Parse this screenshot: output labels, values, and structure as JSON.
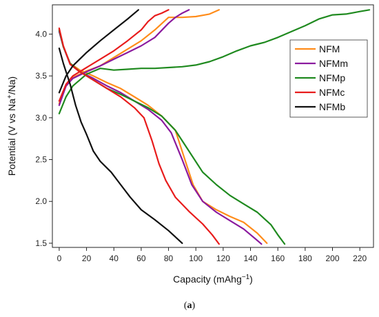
{
  "chart_data": {
    "type": "line",
    "title": "",
    "xlabel": "Capacity (mAhg",
    "xlabel_sup": "−1",
    "xlabel_end": ")",
    "ylabel_parts": [
      "Potential (V vs Na",
      "+",
      "/Na)"
    ],
    "xlim": [
      -5,
      230
    ],
    "ylim": [
      1.45,
      4.35
    ],
    "x_ticks": [
      0,
      20,
      40,
      60,
      80,
      100,
      120,
      140,
      160,
      180,
      200,
      220
    ],
    "y_ticks": [
      1.5,
      2.0,
      2.5,
      3.0,
      3.5,
      4.0
    ],
    "y_tick_labels": [
      "1.5",
      "2.0",
      "2.5",
      "3.0",
      "3.5",
      "4.0"
    ],
    "legend_position": "top-right",
    "grid": false,
    "caption_open": "(",
    "caption_letter": "a",
    "caption_close": ")",
    "series": [
      {
        "name": "NFM",
        "color": "#ff8c1a",
        "charge": [
          [
            0,
            3.17
          ],
          [
            5,
            3.38
          ],
          [
            10,
            3.48
          ],
          [
            20,
            3.56
          ],
          [
            30,
            3.62
          ],
          [
            40,
            3.72
          ],
          [
            50,
            3.82
          ],
          [
            60,
            3.92
          ],
          [
            70,
            4.05
          ],
          [
            80,
            4.2
          ],
          [
            90,
            4.2
          ],
          [
            100,
            4.21
          ],
          [
            110,
            4.24
          ],
          [
            117,
            4.29
          ]
        ],
        "discharge": [
          [
            0,
            4.05
          ],
          [
            3,
            3.85
          ],
          [
            8,
            3.65
          ],
          [
            15,
            3.57
          ],
          [
            25,
            3.5
          ],
          [
            35,
            3.42
          ],
          [
            45,
            3.35
          ],
          [
            55,
            3.25
          ],
          [
            65,
            3.15
          ],
          [
            75,
            3.02
          ],
          [
            85,
            2.85
          ],
          [
            92,
            2.5
          ],
          [
            98,
            2.2
          ],
          [
            105,
            2.0
          ],
          [
            115,
            1.9
          ],
          [
            125,
            1.82
          ],
          [
            135,
            1.75
          ],
          [
            145,
            1.62
          ],
          [
            152,
            1.5
          ]
        ]
      },
      {
        "name": "NFMm",
        "color": "#8b1a9e",
        "charge": [
          [
            0,
            3.15
          ],
          [
            5,
            3.38
          ],
          [
            10,
            3.47
          ],
          [
            20,
            3.55
          ],
          [
            30,
            3.62
          ],
          [
            40,
            3.7
          ],
          [
            50,
            3.78
          ],
          [
            60,
            3.86
          ],
          [
            70,
            3.96
          ],
          [
            80,
            4.13
          ],
          [
            85,
            4.2
          ],
          [
            90,
            4.25
          ],
          [
            95,
            4.29
          ]
        ],
        "discharge": [
          [
            0,
            4.03
          ],
          [
            3,
            3.85
          ],
          [
            8,
            3.64
          ],
          [
            15,
            3.55
          ],
          [
            25,
            3.47
          ],
          [
            35,
            3.38
          ],
          [
            45,
            3.3
          ],
          [
            55,
            3.2
          ],
          [
            65,
            3.1
          ],
          [
            75,
            2.97
          ],
          [
            82,
            2.82
          ],
          [
            90,
            2.5
          ],
          [
            97,
            2.2
          ],
          [
            105,
            2.0
          ],
          [
            115,
            1.87
          ],
          [
            125,
            1.77
          ],
          [
            135,
            1.67
          ],
          [
            143,
            1.56
          ],
          [
            148,
            1.49
          ]
        ]
      },
      {
        "name": "NFMp",
        "color": "#1f8a1f",
        "charge": [
          [
            0,
            3.05
          ],
          [
            5,
            3.25
          ],
          [
            10,
            3.38
          ],
          [
            20,
            3.52
          ],
          [
            30,
            3.59
          ],
          [
            40,
            3.57
          ],
          [
            50,
            3.58
          ],
          [
            60,
            3.59
          ],
          [
            70,
            3.59
          ],
          [
            80,
            3.6
          ],
          [
            90,
            3.61
          ],
          [
            100,
            3.63
          ],
          [
            110,
            3.67
          ],
          [
            120,
            3.73
          ],
          [
            130,
            3.8
          ],
          [
            140,
            3.86
          ],
          [
            150,
            3.9
          ],
          [
            160,
            3.96
          ],
          [
            170,
            4.03
          ],
          [
            180,
            4.1
          ],
          [
            190,
            4.18
          ],
          [
            200,
            4.23
          ],
          [
            210,
            4.24
          ],
          [
            220,
            4.27
          ],
          [
            227,
            4.29
          ]
        ],
        "discharge": [
          [
            0,
            4.05
          ],
          [
            3,
            3.85
          ],
          [
            8,
            3.65
          ],
          [
            15,
            3.55
          ],
          [
            25,
            3.45
          ],
          [
            35,
            3.35
          ],
          [
            45,
            3.28
          ],
          [
            55,
            3.2
          ],
          [
            65,
            3.12
          ],
          [
            75,
            3.02
          ],
          [
            85,
            2.85
          ],
          [
            95,
            2.6
          ],
          [
            105,
            2.35
          ],
          [
            115,
            2.2
          ],
          [
            125,
            2.07
          ],
          [
            135,
            1.97
          ],
          [
            145,
            1.87
          ],
          [
            155,
            1.72
          ],
          [
            160,
            1.6
          ],
          [
            165,
            1.49
          ]
        ]
      },
      {
        "name": "NFMc",
        "color": "#e81c1c",
        "charge": [
          [
            0,
            3.2
          ],
          [
            5,
            3.4
          ],
          [
            10,
            3.5
          ],
          [
            20,
            3.6
          ],
          [
            30,
            3.7
          ],
          [
            40,
            3.8
          ],
          [
            50,
            3.92
          ],
          [
            60,
            4.05
          ],
          [
            65,
            4.15
          ],
          [
            70,
            4.22
          ],
          [
            75,
            4.25
          ],
          [
            80,
            4.29
          ]
        ],
        "discharge": [
          [
            0,
            4.07
          ],
          [
            3,
            3.86
          ],
          [
            8,
            3.64
          ],
          [
            15,
            3.55
          ],
          [
            25,
            3.45
          ],
          [
            35,
            3.35
          ],
          [
            45,
            3.25
          ],
          [
            55,
            3.12
          ],
          [
            62,
            3.0
          ],
          [
            68,
            2.72
          ],
          [
            73,
            2.45
          ],
          [
            78,
            2.25
          ],
          [
            85,
            2.05
          ],
          [
            95,
            1.88
          ],
          [
            105,
            1.73
          ],
          [
            112,
            1.6
          ],
          [
            117,
            1.49
          ]
        ]
      },
      {
        "name": "NFMb",
        "color": "#111111",
        "charge": [
          [
            0,
            3.3
          ],
          [
            5,
            3.5
          ],
          [
            10,
            3.62
          ],
          [
            20,
            3.78
          ],
          [
            30,
            3.92
          ],
          [
            40,
            4.05
          ],
          [
            50,
            4.18
          ],
          [
            58,
            4.29
          ]
        ],
        "discharge": [
          [
            0,
            3.83
          ],
          [
            3,
            3.65
          ],
          [
            8,
            3.4
          ],
          [
            12,
            3.15
          ],
          [
            16,
            2.95
          ],
          [
            20,
            2.8
          ],
          [
            25,
            2.6
          ],
          [
            30,
            2.48
          ],
          [
            38,
            2.35
          ],
          [
            45,
            2.2
          ],
          [
            52,
            2.05
          ],
          [
            60,
            1.9
          ],
          [
            70,
            1.78
          ],
          [
            80,
            1.65
          ],
          [
            90,
            1.5
          ]
        ]
      }
    ]
  }
}
